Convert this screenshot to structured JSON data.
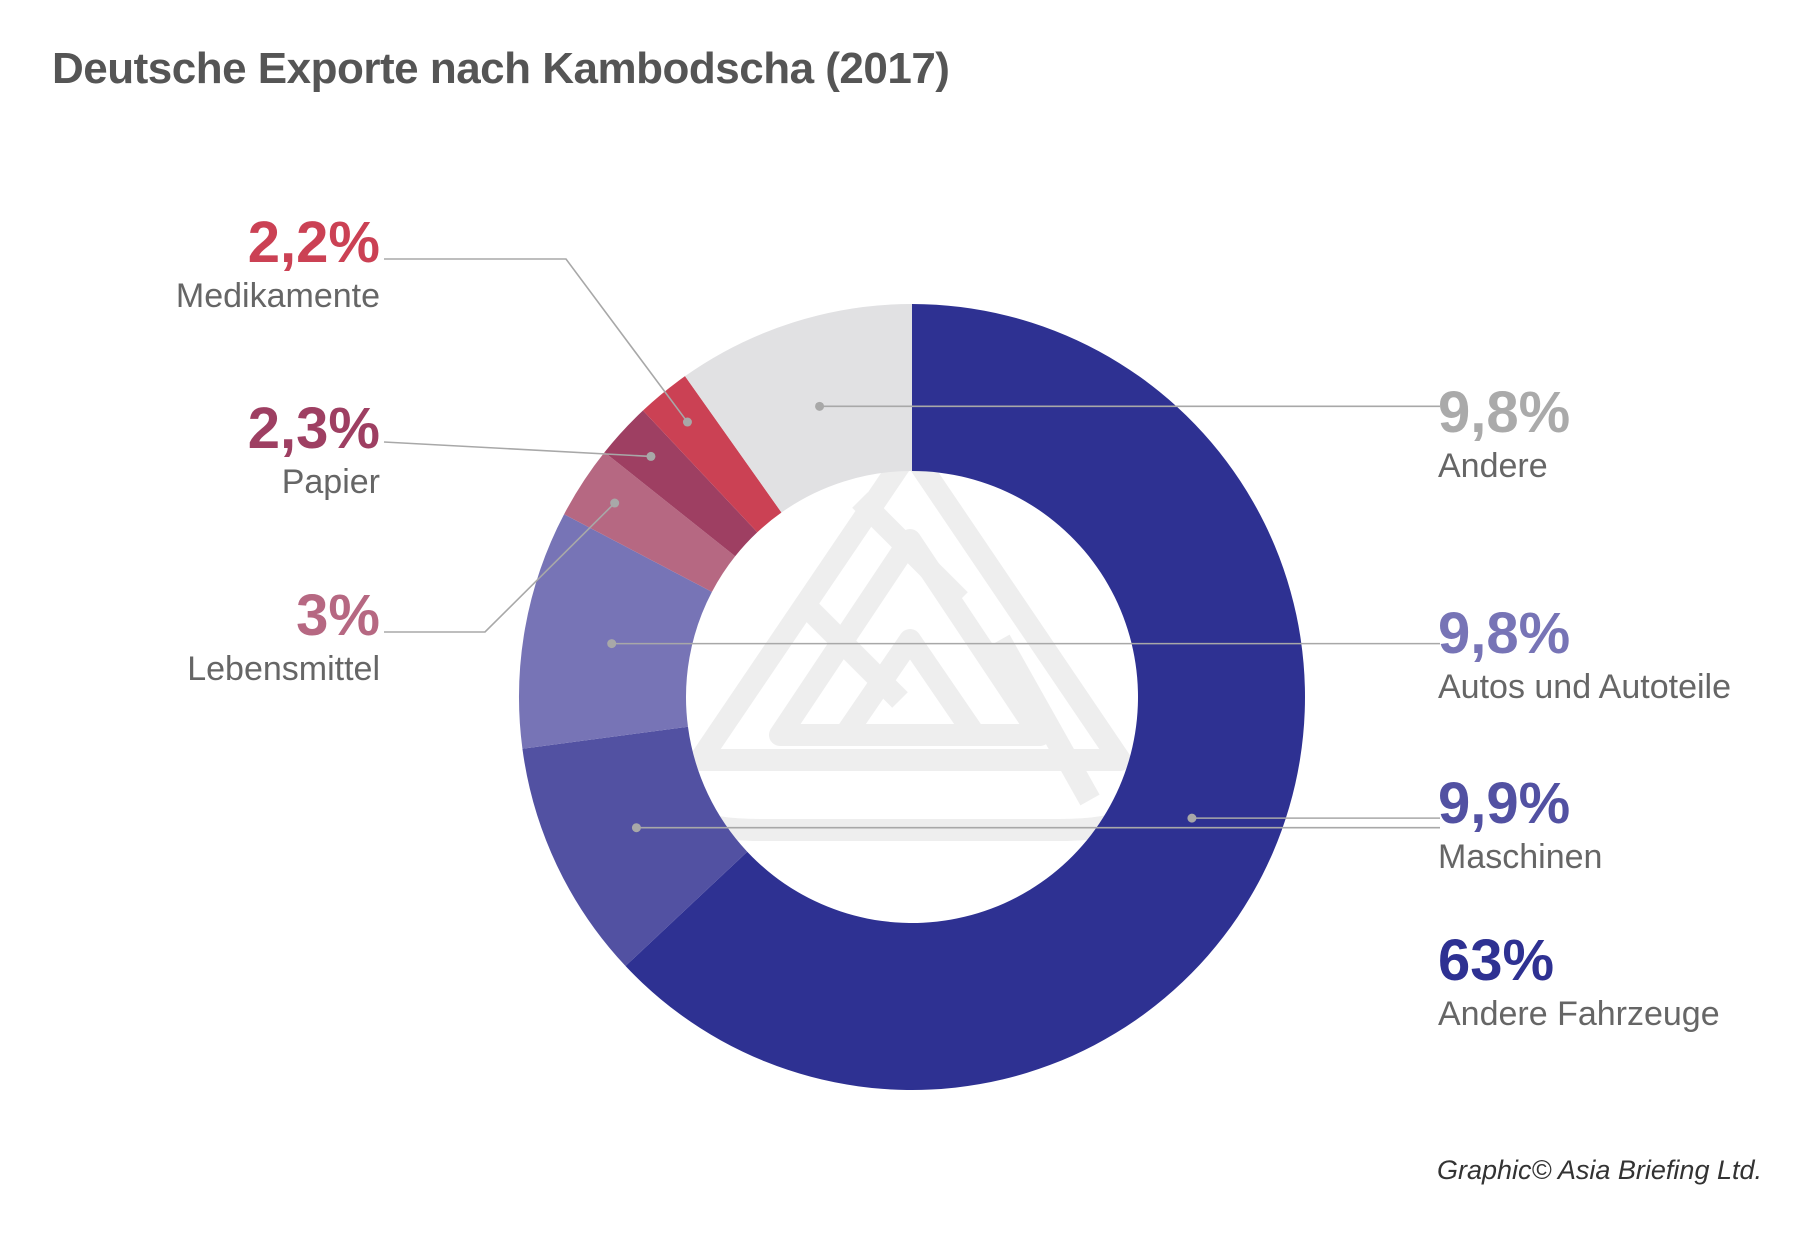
{
  "chart_data": {
    "type": "pie",
    "title": "Deutsche Exporte nach Kambodscha (2017)",
    "slices": [
      {
        "name": "Andere Fahrzeuge",
        "value": 63,
        "label": "63%",
        "color": "#2e3192"
      },
      {
        "name": "Maschinen",
        "value": 9.9,
        "label": "9,9%",
        "color": "#5251a2"
      },
      {
        "name": "Autos und Autoteile",
        "value": 9.8,
        "label": "9,8%",
        "color": "#7774b6"
      },
      {
        "name": "Lebensmittel",
        "value": 3,
        "label": "3%",
        "color": "#b66882"
      },
      {
        "name": "Papier",
        "value": 2.3,
        "label": "2,3%",
        "color": "#9e3f62"
      },
      {
        "name": "Medikamente",
        "value": 2.2,
        "label": "2,2%",
        "color": "#cb4154"
      },
      {
        "name": "Andere",
        "value": 9.8,
        "label": "9,8%",
        "color": "#e1e1e3"
      }
    ],
    "label_colors": {
      "Andere": "#aaaaaa"
    },
    "legend": "none"
  },
  "credit": "Graphic© Asia Briefing Ltd."
}
